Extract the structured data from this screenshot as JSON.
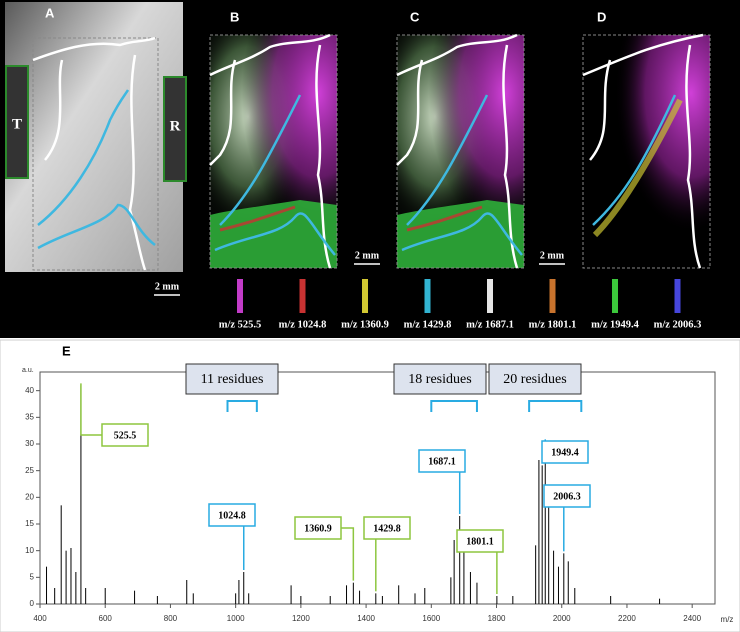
{
  "panels": {
    "labels": [
      "A",
      "B",
      "C",
      "D",
      "E"
    ],
    "regions": [
      "T",
      "R"
    ],
    "scale_bar": "2 mm",
    "legend": [
      {
        "text": "m/z 525.5",
        "color": "#c23cc8"
      },
      {
        "text": "m/z 1024.8",
        "color": "#c83232"
      },
      {
        "text": "m/z 1360.9",
        "color": "#d2c832"
      },
      {
        "text": "m/z 1429.8",
        "color": "#32b4d2"
      },
      {
        "text": "m/z 1687.1",
        "color": "#e6e6e6"
      },
      {
        "text": "m/z 1801.1",
        "color": "#c8732d"
      },
      {
        "text": "m/z 1949.4",
        "color": "#3cc83c"
      },
      {
        "text": "m/z 2006.3",
        "color": "#4646dc"
      }
    ]
  },
  "chart_data": {
    "type": "stem",
    "color": "#000000",
    "x_label": "m/z",
    "y_label": "a.u.",
    "x": [
      420,
      445,
      465,
      480,
      495,
      510,
      525.5,
      540,
      600,
      690,
      760,
      850,
      870,
      1000,
      1010,
      1024.8,
      1040,
      1170,
      1200,
      1290,
      1340,
      1360.9,
      1380,
      1429.8,
      1450,
      1500,
      1550,
      1580,
      1660,
      1670,
      1687.1,
      1700,
      1720,
      1740,
      1801.1,
      1850,
      1920,
      1930,
      1940,
      1949.4,
      1960,
      1975,
      1990,
      2006.3,
      2020,
      2040,
      2150,
      2300
    ],
    "values": [
      7,
      3,
      18.5,
      10,
      10.5,
      6,
      41,
      3,
      3,
      2.5,
      1.5,
      4.5,
      2,
      2,
      4.5,
      6,
      2,
      3.5,
      1.5,
      1.5,
      3.5,
      4,
      2.5,
      2,
      1.5,
      3.5,
      2,
      3,
      5,
      12,
      16.5,
      11,
      6,
      4,
      1.5,
      1.5,
      11,
      27,
      26,
      30.5,
      20,
      10,
      7,
      9.5,
      8,
      3,
      1.5,
      1
    ],
    "xlim": [
      400,
      2470
    ],
    "ylim": [
      0,
      43.5
    ],
    "xticks": [
      400,
      600,
      800,
      1000,
      1200,
      1400,
      1600,
      1800,
      2000,
      2200,
      2400
    ],
    "yticks": [
      0,
      5,
      10,
      15,
      20,
      25,
      30,
      35,
      40
    ],
    "annotations": [
      {
        "text": "525.5",
        "x": 525.5,
        "color": "#8dc63f"
      },
      {
        "text": "1024.8",
        "x": 1024.8,
        "color": "#29abe2"
      },
      {
        "text": "1360.9",
        "x": 1360.9,
        "color": "#8dc63f"
      },
      {
        "text": "1429.8",
        "x": 1429.8,
        "color": "#8dc63f"
      },
      {
        "text": "1687.1",
        "x": 1687.1,
        "color": "#29abe2"
      },
      {
        "text": "1801.1",
        "x": 1801.1,
        "color": "#8dc63f"
      },
      {
        "text": "1949.4",
        "x": 1949.4,
        "color": "#29abe2"
      },
      {
        "text": "2006.3",
        "x": 2006.3,
        "color": "#29abe2"
      }
    ],
    "brackets": [
      {
        "text": "11 residues",
        "x": [
          975,
          1065
        ]
      },
      {
        "text": "18 residues",
        "x": [
          1600,
          1740
        ]
      },
      {
        "text": "20 residues",
        "x": [
          1900,
          2060
        ]
      }
    ]
  }
}
